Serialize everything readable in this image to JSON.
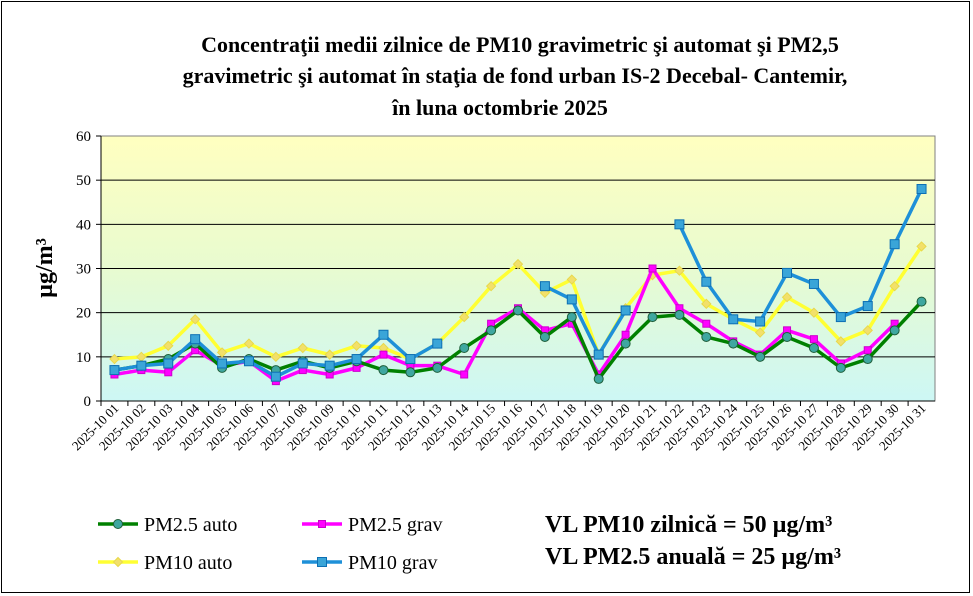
{
  "chart_data": {
    "type": "line",
    "title_lines": [
      "Concentraţii medii zilnice de PM10 gravimetric şi automat şi PM2,5",
      "gravimetric şi automat în staţia de fond urban IS-2 Decebal- Cantemir,",
      "în luna octombrie 2025"
    ],
    "ylabel": "µg/m³",
    "ylim": [
      0,
      60
    ],
    "yticks": [
      0,
      10,
      20,
      30,
      40,
      50,
      60
    ],
    "grid": "horizontal",
    "background": "gradient-yellow-to-cyan",
    "legend_position": "bottom-left",
    "categories": [
      "2025-10 01",
      "2025-10 02",
      "2025-10 03",
      "2025-10 04",
      "2025-10 05",
      "2025-10 06",
      "2025-10 07",
      "2025-10 08",
      "2025-10 09",
      "2025-10 10",
      "2025-10 11",
      "2025-10 12",
      "2025-10 13",
      "2025-10 14",
      "2025-10 15",
      "2025-10 16",
      "2025-10 17",
      "2025-10 18",
      "2025-10 19",
      "2025-10 20",
      "2025-10 21",
      "2025-10 22",
      "2025-10 23",
      "2025-10 24",
      "2025-10 25",
      "2025-10 26",
      "2025-10 27",
      "2025-10 28",
      "2025-10 29",
      "2025-10 30",
      "2025-10 31"
    ],
    "series": [
      {
        "name": "PM10 auto",
        "color": "#ffff33",
        "marker": "diamond",
        "values": [
          9.5,
          10,
          12.5,
          18.5,
          11,
          13,
          10,
          12,
          10.5,
          12.5,
          12,
          9.5,
          13,
          19,
          26,
          31,
          24.5,
          27.5,
          10.5,
          21,
          28.5,
          29.5,
          22,
          18.5,
          15.5,
          23.5,
          20,
          13.5,
          16,
          26,
          35
        ]
      },
      {
        "name": "PM2.5 grav",
        "color": "#ff00ff",
        "marker": "square",
        "values": [
          6,
          7,
          6.5,
          11.5,
          8,
          9,
          4.5,
          7,
          6,
          7.5,
          10.5,
          8,
          8,
          6,
          17.5,
          21,
          16,
          17.5,
          6,
          15,
          30,
          21,
          17.5,
          13.5,
          10.5,
          16,
          14,
          8.5,
          11.5,
          17.5,
          null
        ]
      },
      {
        "name": "PM2.5 auto",
        "color": "#008000",
        "marker": "circle",
        "values": [
          7,
          8,
          9.5,
          13,
          7.5,
          9.5,
          7,
          9,
          7.5,
          9,
          7,
          6.5,
          7.5,
          12,
          16,
          20.5,
          14.5,
          19,
          5,
          13,
          19,
          19.5,
          14.5,
          13,
          10,
          14.5,
          12,
          7.5,
          9.5,
          16,
          22.5
        ]
      },
      {
        "name": "PM10 grav",
        "color": "#1e90d8",
        "marker": "square",
        "values": [
          7,
          8,
          8.5,
          14,
          8.5,
          9,
          5.5,
          8.5,
          8,
          9.5,
          15,
          9.5,
          13,
          null,
          null,
          null,
          26,
          23,
          10.5,
          20.5,
          null,
          40,
          27,
          18.5,
          18,
          29,
          26.5,
          19,
          21.5,
          35.5,
          48
        ]
      }
    ],
    "legend_order": [
      "PM2.5 auto",
      "PM2.5 grav",
      "PM10 auto",
      "PM10 grav"
    ],
    "annotations": [
      "VL PM10 zilnică = 50 µg/m³",
      "VL PM2.5 anuală = 25 µg/m³"
    ]
  }
}
